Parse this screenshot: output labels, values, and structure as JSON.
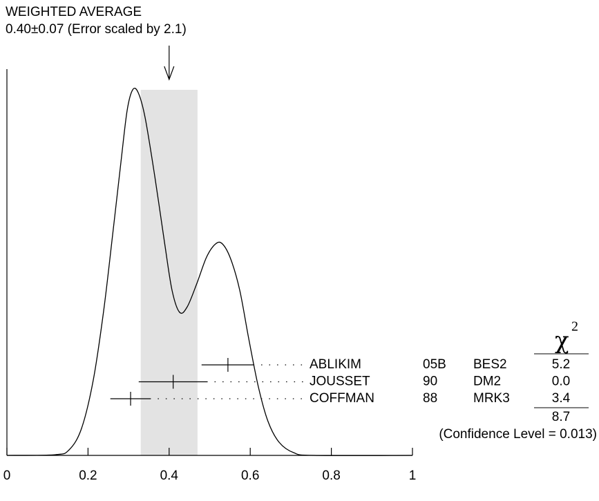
{
  "chart_data": {
    "type": "ideogram",
    "title": "WEIGHTED AVERAGE",
    "subtitle": "0.40±0.07 (Error scaled by 2.1)",
    "average": 0.4,
    "average_error": 0.07,
    "xlim": [
      0,
      1
    ],
    "xticks": [
      0,
      0.2,
      0.4,
      0.6,
      0.8,
      1
    ],
    "chi2_symbol": "χ",
    "chi2_power": "2",
    "categories": [
      "ABLIKIM",
      "JOUSSET",
      "COFFMAN"
    ],
    "years": [
      "05B",
      "90",
      "88"
    ],
    "experiments": [
      "BES2",
      "DM2",
      "MRK3"
    ],
    "values": [
      0.545,
      0.41,
      0.305
    ],
    "errors": [
      0.065,
      0.085,
      0.05
    ],
    "chi2": [
      "5.2",
      "0.0",
      "3.4"
    ],
    "chi2_total": "8.7",
    "confidence": "(Confidence Level = 0.013)"
  }
}
